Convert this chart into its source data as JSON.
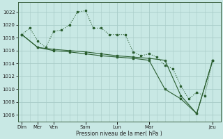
{
  "background_color": "#c8e8e4",
  "grid_color": "#a8ccc8",
  "line_color": "#2a5e30",
  "marker_color": "#2a5e30",
  "xlabel_text": "Pression niveau de la mer( hPa )",
  "ylim": [
    1005,
    1023.5
  ],
  "yticks": [
    1006,
    1008,
    1010,
    1012,
    1014,
    1016,
    1018,
    1020,
    1022
  ],
  "xtick_positions": [
    0,
    2,
    4,
    8,
    12,
    16,
    24
  ],
  "xtick_labels": [
    "Dim",
    "Mer",
    "Ven",
    "Sam",
    "Lun",
    "Mar",
    "Jeu"
  ],
  "xlim": [
    -0.5,
    25
  ],
  "series1_x": [
    0,
    1,
    2,
    3,
    4,
    5,
    6,
    7,
    8,
    9,
    10,
    11,
    12,
    13,
    14,
    15,
    16,
    17,
    18,
    19,
    20,
    21,
    22,
    23,
    24
  ],
  "series1_y": [
    1018.5,
    1019.5,
    1017.5,
    1016.5,
    1019.0,
    1019.2,
    1020.0,
    1022.0,
    1022.2,
    1019.5,
    1019.5,
    1018.5,
    1018.5,
    1018.5,
    1015.8,
    1015.2,
    1015.5,
    1015.0,
    1013.7,
    1013.2,
    1010.5,
    1008.5,
    1009.5,
    1009.0,
    1014.5
  ],
  "series2_x": [
    0,
    2,
    4,
    6,
    8,
    10,
    12,
    14,
    16,
    18,
    20,
    22,
    24
  ],
  "series2_y": [
    1018.5,
    1016.5,
    1016.2,
    1016.0,
    1015.8,
    1015.5,
    1015.2,
    1015.0,
    1014.8,
    1014.5,
    1009.0,
    1006.2,
    1014.5
  ],
  "series3_x": [
    0,
    2,
    4,
    6,
    8,
    10,
    12,
    14,
    16,
    18,
    20,
    22,
    24
  ],
  "series3_y": [
    1018.5,
    1016.5,
    1016.0,
    1015.8,
    1015.5,
    1015.2,
    1015.0,
    1014.8,
    1014.5,
    1010.0,
    1008.5,
    1006.2,
    1014.5
  ]
}
